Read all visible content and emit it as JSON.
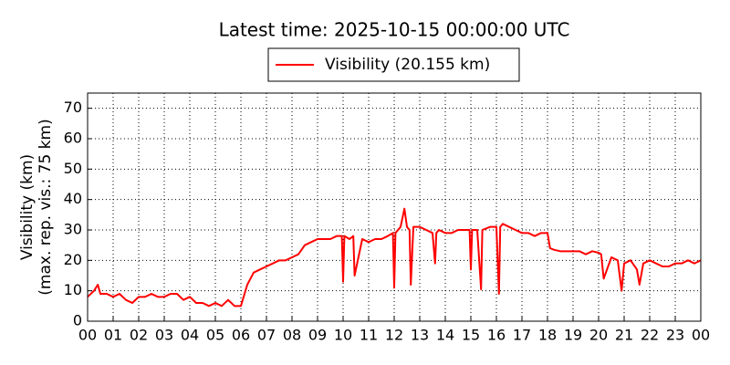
{
  "chart_data": {
    "type": "line",
    "title": "Latest time: 2025-10-15 00:00:00 UTC",
    "y_label": [
      "Visibility (km)",
      "(max. rep. vis.: 75 km)"
    ],
    "x": [
      0,
      0.25,
      0.4,
      0.5,
      0.75,
      1,
      1.25,
      1.5,
      1.75,
      2,
      2.25,
      2.5,
      2.75,
      3,
      3.25,
      3.5,
      3.75,
      4,
      4.25,
      4.5,
      4.75,
      5,
      5.25,
      5.5,
      5.75,
      6,
      6.25,
      6.5,
      6.75,
      7,
      7.25,
      7.5,
      7.75,
      8,
      8.25,
      8.5,
      8.75,
      9,
      9.25,
      9.5,
      9.75,
      9.95,
      10,
      10.05,
      10.25,
      10.4,
      10.45,
      10.75,
      11,
      11.25,
      11.5,
      11.75,
      11.95,
      12,
      12.05,
      12.25,
      12.4,
      12.5,
      12.6,
      12.65,
      12.75,
      13,
      13.25,
      13.5,
      13.6,
      13.65,
      13.75,
      14,
      14.25,
      14.5,
      14.75,
      14.95,
      15,
      15.05,
      15.25,
      15.4,
      15.45,
      15.75,
      16,
      16.1,
      16.15,
      16.25,
      16.5,
      16.75,
      17,
      17.25,
      17.5,
      17.75,
      18,
      18.1,
      18.25,
      18.5,
      18.75,
      19,
      19.25,
      19.5,
      19.75,
      20,
      20.1,
      20.2,
      20.5,
      20.75,
      20.9,
      21,
      21.25,
      21.5,
      21.6,
      21.75,
      22,
      22.25,
      22.5,
      22.75,
      23,
      23.25,
      23.5,
      23.75,
      24
    ],
    "series": [
      {
        "name": "Visibility (20.155 km)",
        "color": "#ff0000",
        "values": [
          8,
          10,
          12,
          9,
          9,
          8,
          9,
          7,
          6,
          8,
          8,
          9,
          8,
          8,
          9,
          9,
          7,
          8,
          6,
          6,
          5,
          6,
          5,
          7,
          5,
          5,
          12,
          16,
          17,
          18,
          19,
          20,
          20,
          21,
          22,
          25,
          26,
          27,
          27,
          27,
          28,
          28,
          13,
          28,
          27,
          28,
          15,
          27,
          26,
          27,
          27,
          28,
          29,
          11,
          29,
          31,
          37,
          31,
          30,
          12,
          31,
          31,
          30,
          29,
          19,
          29,
          30,
          29,
          29,
          30,
          30,
          30,
          17,
          30,
          30,
          10.5,
          30,
          31,
          31,
          9,
          31,
          32,
          31,
          30,
          29,
          29,
          28,
          29,
          29,
          24,
          23.5,
          23,
          23,
          23,
          23,
          22,
          23,
          22.5,
          22,
          14,
          21,
          20,
          10,
          19,
          20,
          17,
          12,
          19,
          20,
          19,
          18,
          18,
          19,
          19,
          20,
          19,
          20
        ]
      }
    ],
    "xlim": [
      0,
      24
    ],
    "xticks": [
      {
        "value": 0,
        "label": "00"
      },
      {
        "value": 1,
        "label": "01"
      },
      {
        "value": 2,
        "label": "02"
      },
      {
        "value": 3,
        "label": "03"
      },
      {
        "value": 4,
        "label": "04"
      },
      {
        "value": 5,
        "label": "05"
      },
      {
        "value": 6,
        "label": "06"
      },
      {
        "value": 7,
        "label": "07"
      },
      {
        "value": 8,
        "label": "08"
      },
      {
        "value": 9,
        "label": "09"
      },
      {
        "value": 10,
        "label": "10"
      },
      {
        "value": 11,
        "label": "11"
      },
      {
        "value": 12,
        "label": "12"
      },
      {
        "value": 13,
        "label": "13"
      },
      {
        "value": 14,
        "label": "14"
      },
      {
        "value": 15,
        "label": "15"
      },
      {
        "value": 16,
        "label": "16"
      },
      {
        "value": 17,
        "label": "17"
      },
      {
        "value": 18,
        "label": "18"
      },
      {
        "value": 19,
        "label": "19"
      },
      {
        "value": 20,
        "label": "20"
      },
      {
        "value": 21,
        "label": "21"
      },
      {
        "value": 22,
        "label": "22"
      },
      {
        "value": 23,
        "label": "23"
      },
      {
        "value": 24,
        "label": "00"
      }
    ],
    "ylim": [
      0,
      75
    ],
    "yticks": [
      0,
      10,
      20,
      30,
      40,
      50,
      60,
      70
    ],
    "grid": true
  }
}
